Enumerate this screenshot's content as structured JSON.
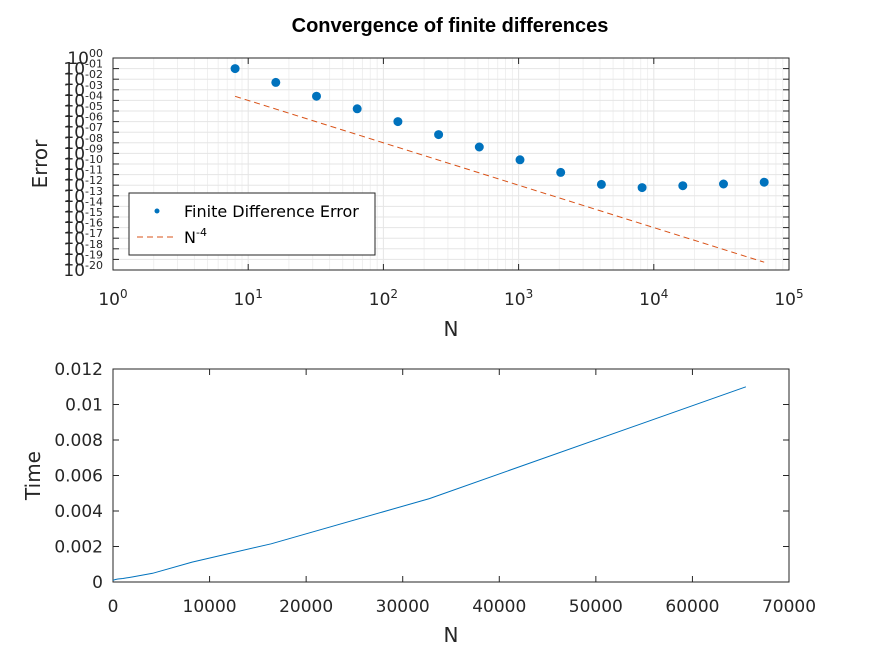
{
  "figure_title": "Convergence of finite differences",
  "colors": {
    "series1": "#0072BD",
    "series2": "#D95319",
    "grid": "#E5E5E5",
    "axis": "#262626"
  },
  "chart_data": [
    {
      "type": "scatter",
      "title": "Convergence of finite differences",
      "xlabel": "N",
      "ylabel": "Error",
      "xscale": "log",
      "yscale": "log",
      "xlim": [
        1,
        100000
      ],
      "ylim": [
        1e-20,
        1
      ],
      "grid": true,
      "xticks": [
        {
          "value": 1,
          "base": "10",
          "exp": "0"
        },
        {
          "value": 10,
          "base": "10",
          "exp": "1"
        },
        {
          "value": 100,
          "base": "10",
          "exp": "2"
        },
        {
          "value": 1000,
          "base": "10",
          "exp": "3"
        },
        {
          "value": 10000,
          "base": "10",
          "exp": "4"
        },
        {
          "value": 100000,
          "base": "10",
          "exp": "5"
        }
      ],
      "yticks": [
        {
          "value": 1e-20,
          "base": "10",
          "exp": "-20"
        },
        {
          "value": 1e-19,
          "base": "10",
          "exp": "-19"
        },
        {
          "value": 1e-18,
          "base": "10",
          "exp": "-18"
        },
        {
          "value": 1e-17,
          "base": "10",
          "exp": "-17"
        },
        {
          "value": 1e-16,
          "base": "10",
          "exp": "-16"
        },
        {
          "value": 1e-15,
          "base": "10",
          "exp": "-15"
        },
        {
          "value": 1e-14,
          "base": "10",
          "exp": "-14"
        },
        {
          "value": 1e-13,
          "base": "10",
          "exp": "-13"
        },
        {
          "value": 1e-12,
          "base": "10",
          "exp": "-12"
        },
        {
          "value": 1e-11,
          "base": "10",
          "exp": "-11"
        },
        {
          "value": 1e-10,
          "base": "10",
          "exp": "-10"
        },
        {
          "value": 1e-09,
          "base": "10",
          "exp": "-09"
        },
        {
          "value": 1e-08,
          "base": "10",
          "exp": "-08"
        },
        {
          "value": 1e-07,
          "base": "10",
          "exp": "-07"
        },
        {
          "value": 1e-06,
          "base": "10",
          "exp": "-06"
        },
        {
          "value": 1e-05,
          "base": "10",
          "exp": "-05"
        },
        {
          "value": 0.0001,
          "base": "10",
          "exp": "-04"
        },
        {
          "value": 0.001,
          "base": "10",
          "exp": "-03"
        },
        {
          "value": 0.01,
          "base": "10",
          "exp": "-02"
        },
        {
          "value": 0.1,
          "base": "10",
          "exp": "-01"
        },
        {
          "value": 1,
          "base": "10",
          "exp": "00"
        }
      ],
      "legend": {
        "location": "bottom-left",
        "entries": [
          {
            "label": "Finite Difference Error",
            "base": "Finite Difference Error",
            "sup": ""
          },
          {
            "label": "N^-4",
            "base": "N",
            "sup": "-4"
          }
        ]
      },
      "series": [
        {
          "name": "Finite Difference Error",
          "style": "markers",
          "x": [
            8,
            16,
            32,
            64,
            128,
            256,
            512,
            1024,
            2048,
            4096,
            8192,
            16384,
            32768,
            65536
          ],
          "y": [
            0.1,
            0.005,
            0.00025,
            1.6e-05,
            1e-06,
            6e-08,
            4e-09,
            2.5e-10,
            1.6e-11,
            1.2e-12,
            6e-13,
            9e-13,
            1.3e-12,
            1.9e-12
          ]
        },
        {
          "name": "N^-4",
          "style": "dashed",
          "x": [
            8,
            65536
          ],
          "y": [
            0.000244140625,
            5.421010862427522e-20
          ]
        }
      ]
    },
    {
      "type": "line",
      "xlabel": "N",
      "ylabel": "Time",
      "xlim": [
        0,
        70000
      ],
      "ylim": [
        0,
        0.012
      ],
      "grid": false,
      "xticks": [
        {
          "value": 0,
          "label": "0"
        },
        {
          "value": 10000,
          "label": "10000"
        },
        {
          "value": 20000,
          "label": "20000"
        },
        {
          "value": 30000,
          "label": "30000"
        },
        {
          "value": 40000,
          "label": "40000"
        },
        {
          "value": 50000,
          "label": "50000"
        },
        {
          "value": 60000,
          "label": "60000"
        },
        {
          "value": 70000,
          "label": "70000"
        }
      ],
      "yticks": [
        {
          "value": 0,
          "label": "0"
        },
        {
          "value": 0.002,
          "label": "0.002"
        },
        {
          "value": 0.004,
          "label": "0.004"
        },
        {
          "value": 0.006,
          "label": "0.006"
        },
        {
          "value": 0.008,
          "label": "0.008"
        },
        {
          "value": 0.01,
          "label": "0.01"
        },
        {
          "value": 0.012,
          "label": "0.012"
        }
      ],
      "series": [
        {
          "name": "Time",
          "x": [
            8,
            16,
            32,
            64,
            128,
            256,
            512,
            1024,
            2048,
            4096,
            8192,
            16384,
            32768,
            65536
          ],
          "y": [
            8e-05,
            9e-05,
            0.0001,
            0.00011,
            0.00012,
            0.00014,
            0.00017,
            0.0002,
            0.00029,
            0.00049,
            0.00112,
            0.00215,
            0.0047,
            0.011
          ]
        }
      ]
    }
  ]
}
